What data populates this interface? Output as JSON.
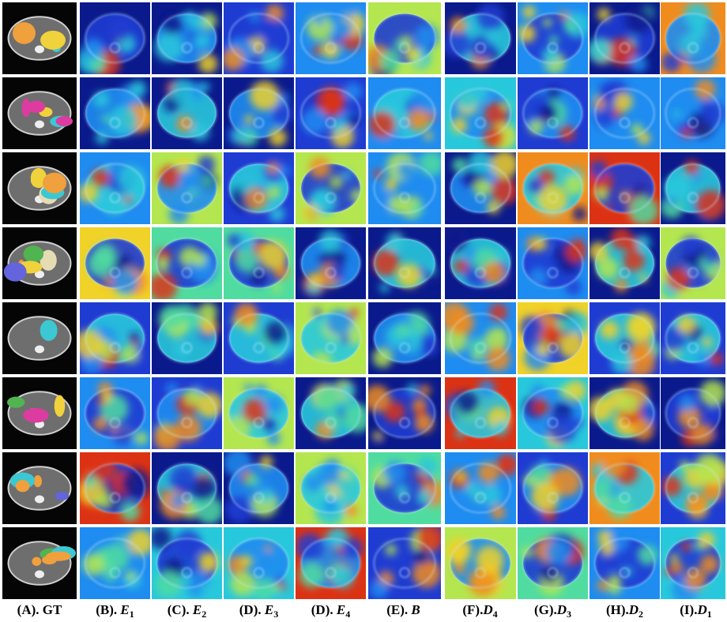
{
  "figure": {
    "columns": [
      {
        "prefix": "(A). GT"
      },
      {
        "prefix": "(B). ",
        "symbol": "E",
        "sub": "1"
      },
      {
        "prefix": "(C). ",
        "symbol": "E",
        "sub": "2"
      },
      {
        "prefix": "(D). ",
        "symbol": "E",
        "sub": "3"
      },
      {
        "prefix": "(D). ",
        "symbol": "E",
        "sub": "4"
      },
      {
        "prefix": "(E). ",
        "symbol": "B"
      },
      {
        "prefix": "(F).",
        "symbol": "D",
        "sub": "4"
      },
      {
        "prefix": "(G).",
        "symbol": "D",
        "sub": "3"
      },
      {
        "prefix": "(H).",
        "symbol": "D",
        "sub": "2"
      },
      {
        "prefix": "(I).",
        "symbol": "D",
        "sub": "1"
      }
    ]
  }
}
